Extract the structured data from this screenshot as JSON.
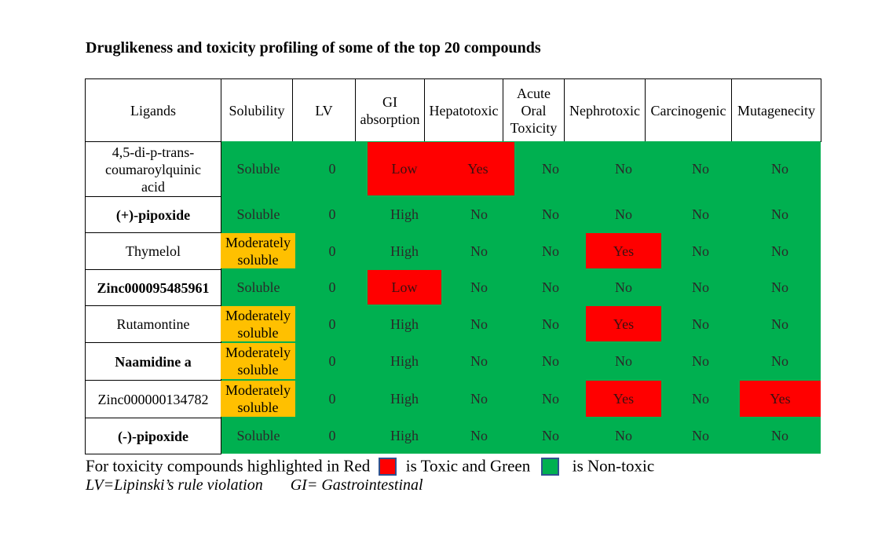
{
  "title": "Druglikeness and toxicity profiling of some of the top 20 compounds",
  "colors": {
    "toxic": "#ff0000",
    "non_toxic": "#00b050",
    "moderate": "#ffc000"
  },
  "table": {
    "headers": [
      "Ligands",
      "Solubility",
      "LV",
      "GI absorption",
      "Hepatotoxic",
      "Acute Oral Toxicity",
      "Nephrotoxic",
      "Carcinogenic",
      "Mutagenecity"
    ],
    "rows": [
      {
        "ligand": "4,5-di-p-trans-coumaroylquinic acid",
        "solubility": "Soluble",
        "lv": "0",
        "gi": "Low",
        "hepatotoxic": "Yes",
        "acute": "No",
        "nephrotoxic": "No",
        "carcinogenic": "No",
        "mutagenicity": "No"
      },
      {
        "ligand": "(+)-pipoxide",
        "solubility": "Soluble",
        "lv": "0",
        "gi": "High",
        "hepatotoxic": "No",
        "acute": "No",
        "nephrotoxic": "No",
        "carcinogenic": "No",
        "mutagenicity": "No"
      },
      {
        "ligand": "Thymelol",
        "solubility": "Moderately soluble",
        "lv": "0",
        "gi": "High",
        "hepatotoxic": "No",
        "acute": "No",
        "nephrotoxic": "Yes",
        "carcinogenic": "No",
        "mutagenicity": "No"
      },
      {
        "ligand": "Zinc000095485961",
        "solubility": "Soluble",
        "lv": "0",
        "gi": "Low",
        "hepatotoxic": "No",
        "acute": "No",
        "nephrotoxic": "No",
        "carcinogenic": "No",
        "mutagenicity": "No"
      },
      {
        "ligand": "Rutamontine",
        "solubility": "Moderately soluble",
        "lv": "0",
        "gi": "High",
        "hepatotoxic": "No",
        "acute": "No",
        "nephrotoxic": "Yes",
        "carcinogenic": "No",
        "mutagenicity": "No"
      },
      {
        "ligand": "Naamidine a",
        "solubility": "Moderately soluble",
        "lv": "0",
        "gi": "High",
        "hepatotoxic": "No",
        "acute": "No",
        "nephrotoxic": "No",
        "carcinogenic": "No",
        "mutagenicity": "No"
      },
      {
        "ligand": "Zinc000000134782",
        "solubility": "Moderately soluble",
        "lv": "0",
        "gi": "High",
        "hepatotoxic": "No",
        "acute": "No",
        "nephrotoxic": "Yes",
        "carcinogenic": "No",
        "mutagenicity": "Yes"
      },
      {
        "ligand": "(-)-pipoxide",
        "solubility": "Soluble",
        "lv": "0",
        "gi": "High",
        "hepatotoxic": "No",
        "acute": "No",
        "nephrotoxic": "No",
        "carcinogenic": "No",
        "mutagenicity": "No"
      }
    ]
  },
  "footnote": {
    "part1": "For toxicity compounds highlighted in Red",
    "part2": "is Toxic  and Green",
    "part3": "is Non-toxic"
  },
  "abbreviations": {
    "lv": "LV=Lipinski’s rule violation",
    "gi": "GI= Gastrointestinal"
  }
}
